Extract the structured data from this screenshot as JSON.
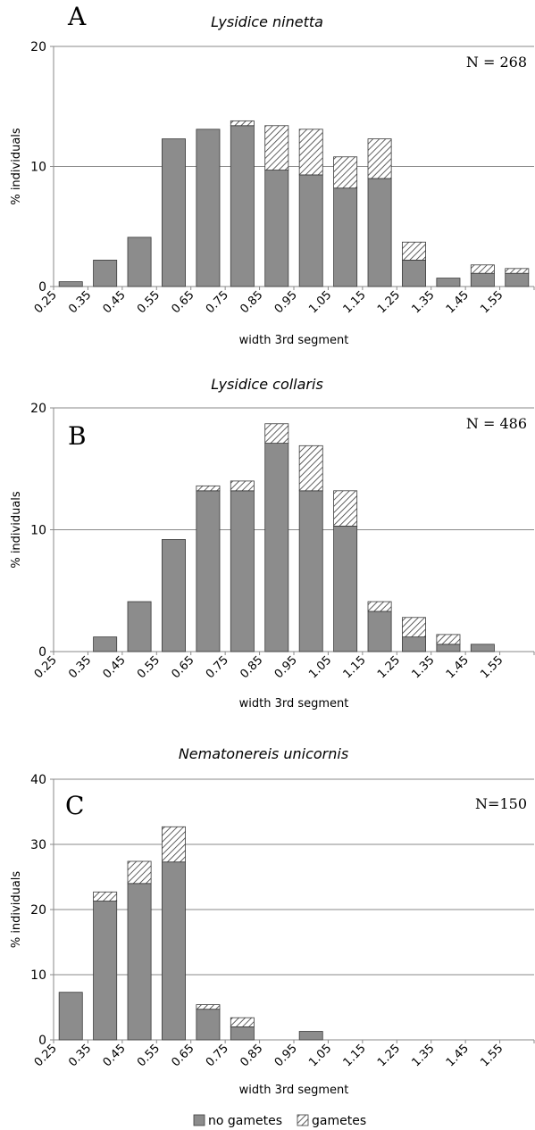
{
  "chart_data": [
    {
      "type": "bar",
      "stacked": true,
      "letter": "A",
      "title": "Lysidice ninetta",
      "n_label": "N = 268",
      "xlabel": "width 3rd segment",
      "ylabel": "% individuals",
      "ylim": [
        0,
        20
      ],
      "yticks": [
        0,
        10,
        20
      ],
      "grid": true,
      "categories": [
        "0.25",
        "0.35",
        "0.45",
        "0.55",
        "0.65",
        "0.75",
        "0.85",
        "0.95",
        "1.05",
        "1.15",
        "1.25",
        "1.35",
        "1.45",
        "1.55"
      ],
      "series": [
        {
          "name": "no gametes",
          "values": [
            0.4,
            2.2,
            4.1,
            12.3,
            13.1,
            13.4,
            9.7,
            9.3,
            8.2,
            9.0,
            2.2,
            0.7,
            1.1,
            1.1
          ]
        },
        {
          "name": "gametes",
          "values": [
            0,
            0,
            0,
            0,
            0,
            0.4,
            3.7,
            3.8,
            2.6,
            3.3,
            1.5,
            0,
            0.7,
            0.4
          ]
        }
      ]
    },
    {
      "type": "bar",
      "stacked": true,
      "letter": "B",
      "title": "Lysidice collaris",
      "n_label": "N = 486",
      "xlabel": "width 3rd segment",
      "ylabel": "% individuals",
      "ylim": [
        0,
        20
      ],
      "yticks": [
        0,
        10,
        20
      ],
      "grid": true,
      "categories": [
        "0.25",
        "0.35",
        "0.45",
        "0.55",
        "0.65",
        "0.75",
        "0.85",
        "0.95",
        "1.05",
        "1.15",
        "1.25",
        "1.35",
        "1.45",
        "1.55"
      ],
      "series": [
        {
          "name": "no gametes",
          "values": [
            0,
            1.2,
            4.1,
            9.2,
            13.2,
            13.2,
            17.1,
            13.2,
            10.3,
            3.3,
            1.2,
            0.6,
            0.6,
            0
          ]
        },
        {
          "name": "gametes",
          "values": [
            0,
            0,
            0,
            0,
            0.4,
            0.8,
            1.6,
            3.7,
            2.9,
            0.8,
            1.6,
            0.8,
            0,
            0
          ]
        }
      ]
    },
    {
      "type": "bar",
      "stacked": true,
      "letter": "C",
      "title": "Nematonereis unicornis",
      "n_label": "N=150",
      "xlabel": "width 3rd segment",
      "ylabel": "% individuals",
      "ylim": [
        0,
        40
      ],
      "yticks": [
        0,
        10,
        20,
        30,
        40
      ],
      "grid": true,
      "categories": [
        "0.25",
        "0.35",
        "0.45",
        "0.55",
        "0.65",
        "0.75",
        "0.85",
        "0.95",
        "1.05",
        "1.15",
        "1.25",
        "1.35",
        "1.45",
        "1.55"
      ],
      "series": [
        {
          "name": "no gametes",
          "values": [
            7.3,
            21.3,
            24.0,
            27.3,
            4.7,
            2.0,
            0,
            1.3,
            0,
            0,
            0,
            0,
            0,
            0
          ]
        },
        {
          "name": "gametes",
          "values": [
            0,
            1.4,
            3.4,
            5.4,
            0.7,
            1.4,
            0,
            0,
            0,
            0,
            0,
            0,
            0,
            0
          ]
        }
      ]
    }
  ],
  "legend": {
    "items": [
      {
        "label": "no gametes",
        "style": "solid"
      },
      {
        "label": "gametes",
        "style": "hatched"
      }
    ]
  },
  "colors": {
    "bar_fill": "#8c8c8c",
    "bar_stroke": "#3a3a3a",
    "hatch_line": "#3a3a3a",
    "grid": "#8a8a8a",
    "axis": "#8a8a8a"
  }
}
